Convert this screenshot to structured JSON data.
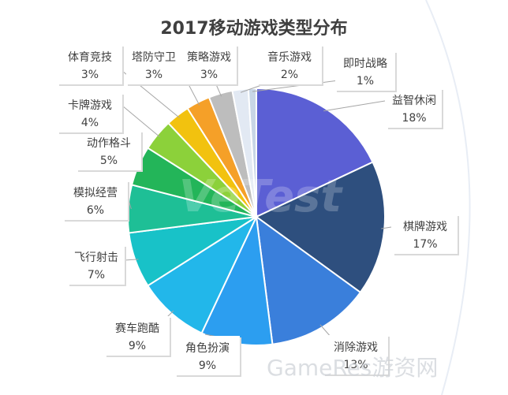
{
  "chart_data": {
    "type": "pie",
    "title": "2017移动游戏类型分布",
    "categories": [
      "益智休闲",
      "棋牌游戏",
      "消除游戏",
      "角色扮演",
      "赛车跑酷",
      "飞行射击",
      "模拟经营",
      "动作格斗",
      "卡牌游戏",
      "体育竞技",
      "塔防守卫",
      "策略游戏",
      "音乐游戏",
      "即时战略"
    ],
    "values": [
      18,
      17,
      13,
      9,
      9,
      7,
      6,
      5,
      4,
      3,
      3,
      3,
      2,
      1
    ],
    "value_labels": [
      "18%",
      "17%",
      "13%",
      "9%",
      "9%",
      "7%",
      "6%",
      "5%",
      "4%",
      "3%",
      "3%",
      "3%",
      "2%",
      "1%"
    ],
    "colors": [
      "#5b5fd4",
      "#2e4f7e",
      "#3a7fdb",
      "#2c9ef0",
      "#22b7ea",
      "#18c2c8",
      "#1ebf96",
      "#23b559",
      "#8cd13a",
      "#f2c20f",
      "#f5a028",
      "#bdbdbd",
      "#e2e9f3",
      "#c8d6e6"
    ],
    "legend": "none"
  },
  "watermarks": [
    "VeTest",
    "GameRes游资网"
  ]
}
